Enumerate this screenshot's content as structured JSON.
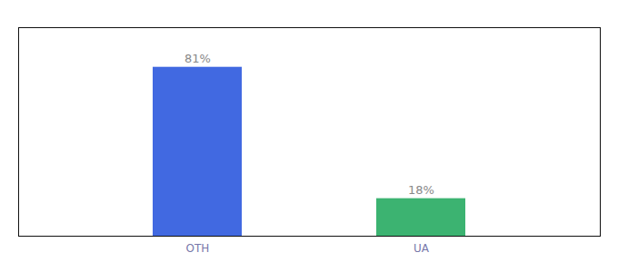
{
  "chart_data": {
    "type": "bar",
    "categories": [
      "OTH",
      "UA"
    ],
    "values": [
      81,
      18
    ],
    "value_labels": [
      "81%",
      "18%"
    ],
    "colors": [
      "#4169E1",
      "#3CB371"
    ],
    "ylim": [
      0,
      100
    ],
    "data_labels": true,
    "tick_labels": "x"
  }
}
